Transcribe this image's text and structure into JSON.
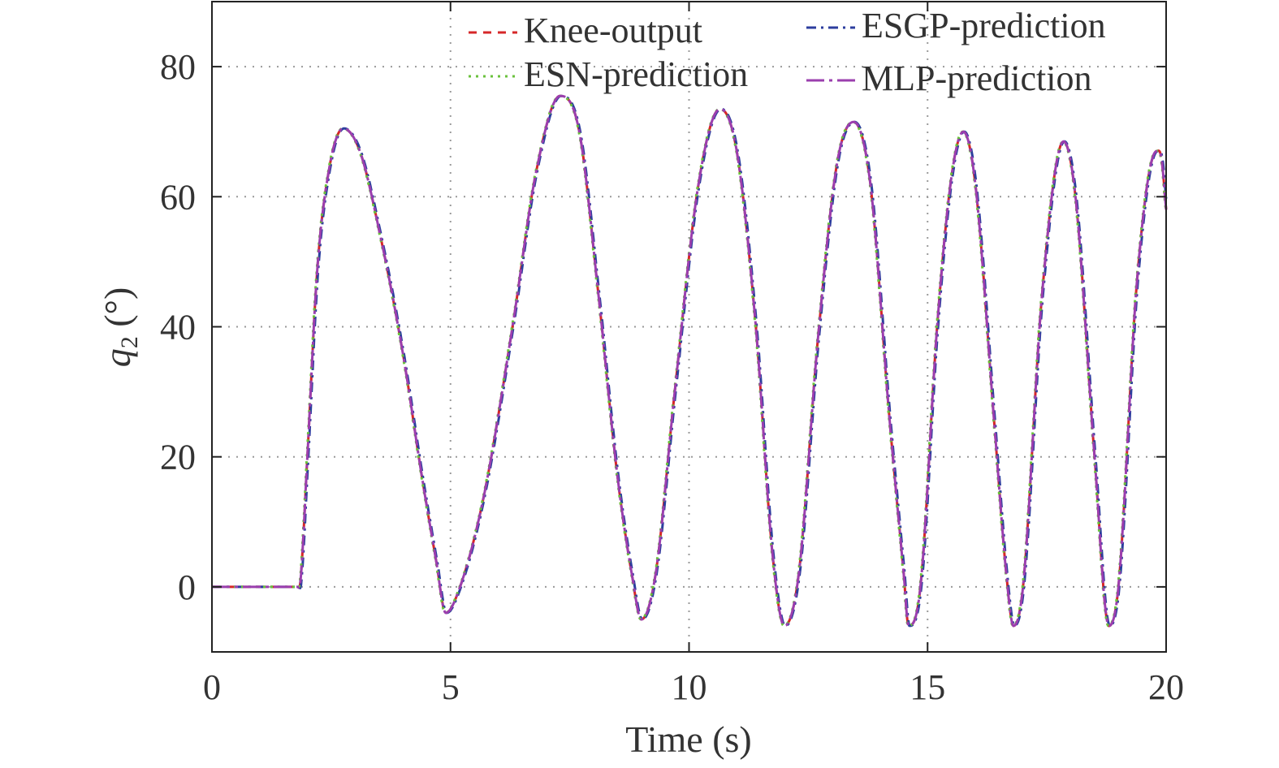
{
  "chart_data": {
    "type": "line",
    "title": "",
    "xlabel": "Time (s)",
    "ylabel_main": "q",
    "ylabel_sub": "2",
    "ylabel_unit": " (°)",
    "xlim": [
      0,
      20
    ],
    "ylim": [
      -10,
      90
    ],
    "xticks": [
      0,
      5,
      10,
      15,
      20
    ],
    "yticks": [
      0,
      20,
      40,
      60,
      80
    ],
    "xtick_labels": [
      "0",
      "5",
      "10",
      "15",
      "20"
    ],
    "ytick_labels": [
      "0",
      "20",
      "40",
      "60",
      "80"
    ],
    "grid": "dotted",
    "legend_position": "top",
    "key_points": [
      [
        0,
        0
      ],
      [
        1.8,
        0
      ],
      [
        1.85,
        0.5
      ],
      [
        2.0,
        20
      ],
      [
        2.2,
        48
      ],
      [
        2.45,
        64
      ],
      [
        2.75,
        70.5
      ],
      [
        3.1,
        67
      ],
      [
        3.5,
        55
      ],
      [
        4.0,
        36
      ],
      [
        4.4,
        17
      ],
      [
        4.7,
        4
      ],
      [
        4.9,
        -4
      ],
      [
        5.2,
        0
      ],
      [
        5.7,
        14
      ],
      [
        6.3,
        40
      ],
      [
        6.8,
        64
      ],
      [
        7.3,
        75.5
      ],
      [
        7.7,
        70
      ],
      [
        8.1,
        45
      ],
      [
        8.5,
        17
      ],
      [
        8.8,
        2
      ],
      [
        9.0,
        -5
      ],
      [
        9.3,
        2
      ],
      [
        9.7,
        30
      ],
      [
        10.2,
        62
      ],
      [
        10.65,
        73.5
      ],
      [
        11.0,
        67
      ],
      [
        11.4,
        40
      ],
      [
        11.75,
        5
      ],
      [
        12.0,
        -6
      ],
      [
        12.3,
        2
      ],
      [
        12.7,
        38
      ],
      [
        13.1,
        65
      ],
      [
        13.45,
        71.5
      ],
      [
        13.8,
        62
      ],
      [
        14.2,
        26
      ],
      [
        14.5,
        2
      ],
      [
        14.6,
        -6
      ],
      [
        14.85,
        0
      ],
      [
        15.2,
        40
      ],
      [
        15.5,
        63
      ],
      [
        15.75,
        70
      ],
      [
        16.0,
        62
      ],
      [
        16.4,
        25
      ],
      [
        16.65,
        2
      ],
      [
        16.8,
        -6
      ],
      [
        17.0,
        0
      ],
      [
        17.4,
        45
      ],
      [
        17.85,
        68.5
      ],
      [
        18.1,
        60
      ],
      [
        18.5,
        20
      ],
      [
        18.8,
        -6
      ],
      [
        19.0,
        0
      ],
      [
        19.4,
        48
      ],
      [
        19.8,
        67
      ],
      [
        19.9,
        66
      ],
      [
        20.0,
        58
      ]
    ],
    "series": [
      {
        "name": "Knee-output",
        "color": "#d62728",
        "dash": "10 8",
        "shift": 0
      },
      {
        "name": "ESGP-prediction",
        "color": "#2c3e9e",
        "dash": "12 6 3 6",
        "shift": 0.02
      },
      {
        "name": "ESN-prediction",
        "color": "#6ac13c",
        "dash": "3 6",
        "shift": -0.01
      },
      {
        "name": "MLP-prediction",
        "color": "#9b3fae",
        "dash": "22 6 4 6",
        "shift": 0
      }
    ]
  }
}
